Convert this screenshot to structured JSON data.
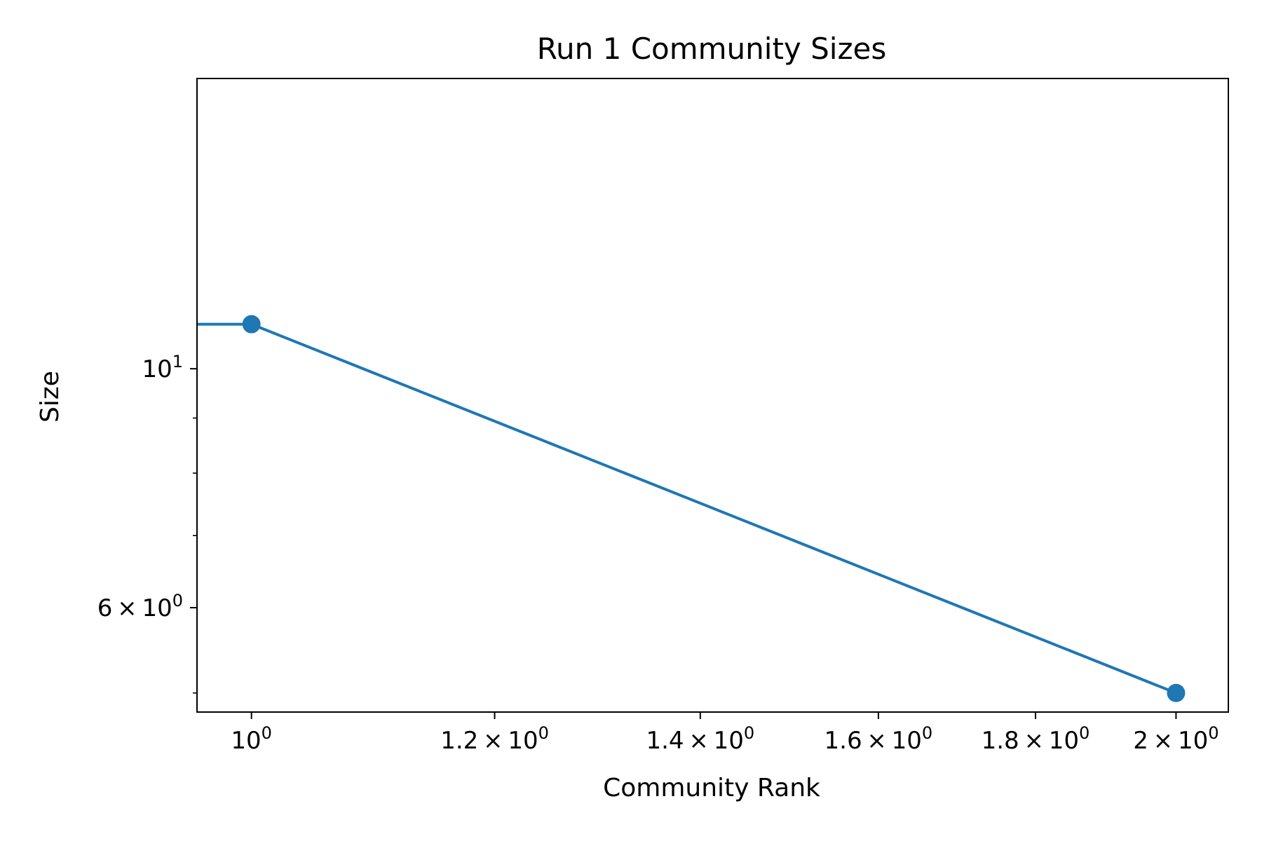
{
  "chart_data": {
    "type": "line",
    "title": "Run 1 Community Sizes",
    "xlabel": "Community Rank",
    "ylabel": "Size",
    "x_scale": "log",
    "y_scale": "log",
    "xlim": [
      0.96,
      2.08
    ],
    "ylim": [
      4.8,
      18.6
    ],
    "grid": false,
    "series": [
      {
        "x": [
          0.9,
          1,
          2
        ],
        "y": [
          11,
          11,
          5
        ],
        "color": "#1f77b4",
        "markers": [
          false,
          true,
          true
        ]
      }
    ],
    "xticks": [
      {
        "value": 1.0,
        "base": "10",
        "exp": "0"
      },
      {
        "value": 1.2,
        "mant": "1.2",
        "base": "10",
        "exp": "0"
      },
      {
        "value": 1.4,
        "mant": "1.4",
        "base": "10",
        "exp": "0"
      },
      {
        "value": 1.6,
        "mant": "1.6",
        "base": "10",
        "exp": "0"
      },
      {
        "value": 1.8,
        "mant": "1.8",
        "base": "10",
        "exp": "0"
      },
      {
        "value": 2.0,
        "mant": "2",
        "base": "10",
        "exp": "0"
      }
    ],
    "yticks": [
      {
        "value": 10,
        "base": "10",
        "exp": "1"
      },
      {
        "value": 6,
        "mant": "6",
        "base": "10",
        "exp": "0"
      }
    ],
    "yminor": [
      5,
      7,
      8,
      9
    ],
    "times_symbol": "×"
  }
}
